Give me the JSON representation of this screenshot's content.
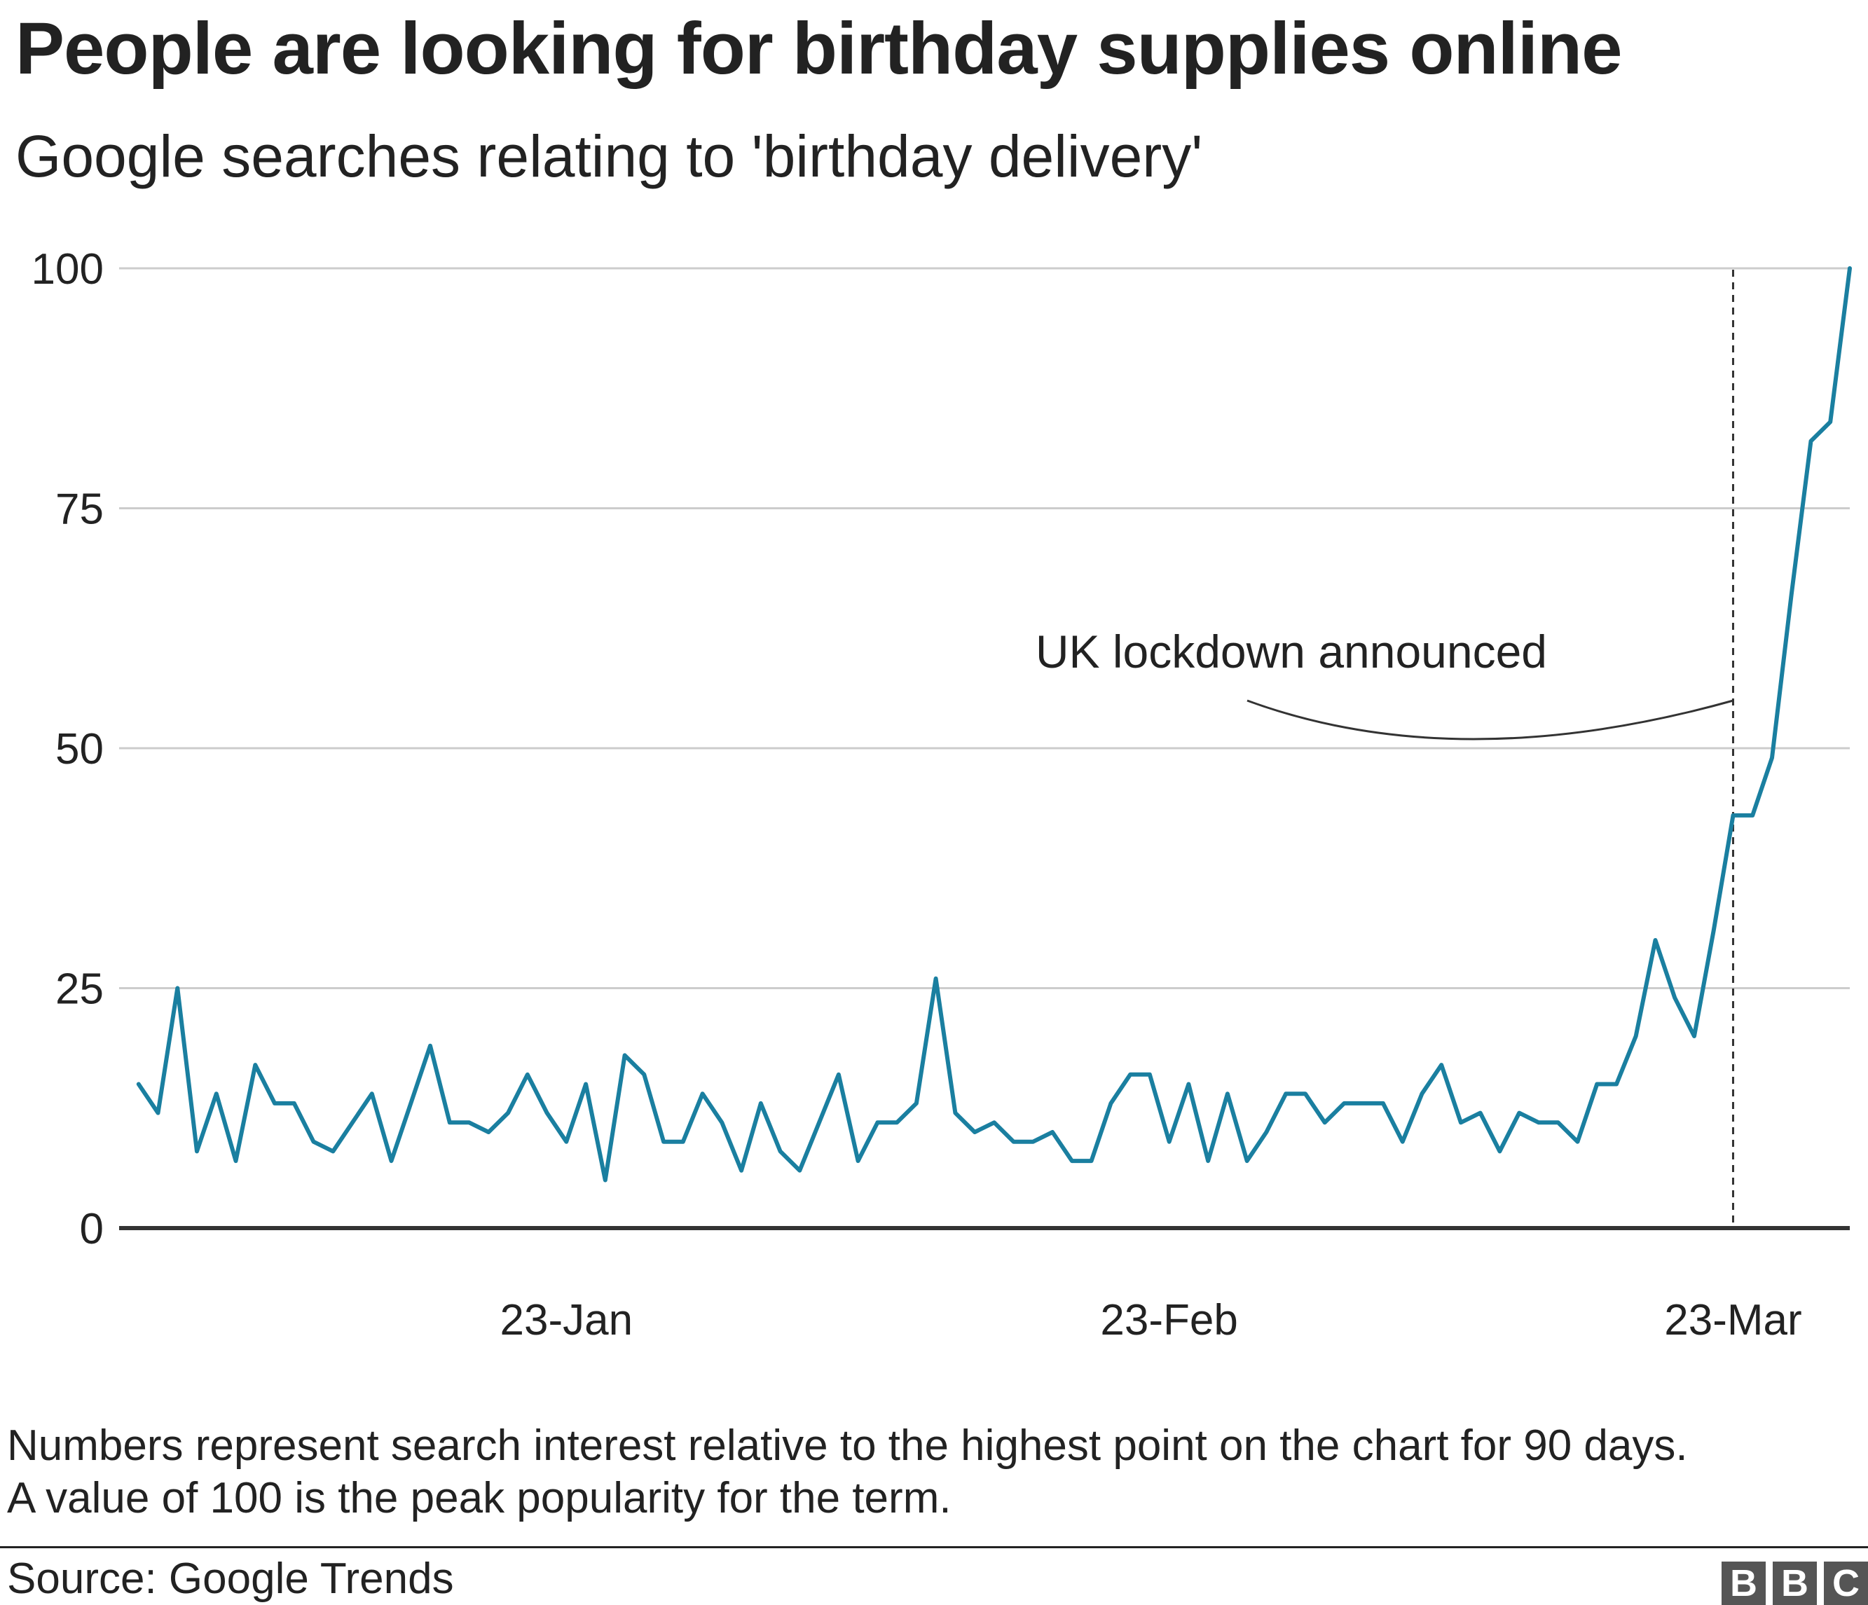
{
  "title": "People are looking for birthday supplies online",
  "subtitle": "Google searches relating to 'birthday delivery'",
  "notes": [
    "Numbers represent search interest relative to the highest point on the chart for 90 days.",
    "A value of 100 is the peak popularity for the term."
  ],
  "source": "Source: Google Trends",
  "logo": [
    "B",
    "B",
    "C"
  ],
  "colors": {
    "line": "#1a7fa0",
    "grid": "#cccccc",
    "axis": "#333333",
    "text": "#222222"
  },
  "chart_data": {
    "type": "line",
    "title": "People are looking for birthday supplies online",
    "subtitle": "Google searches relating to 'birthday delivery'",
    "xlabel": "",
    "ylabel": "",
    "ylim": [
      0,
      100
    ],
    "xlim": [
      "2019-12-31",
      "2020-03-29"
    ],
    "yticks": [
      0,
      25,
      50,
      75,
      100
    ],
    "xtick_labels": [
      {
        "label": "23-Jan",
        "date": "2020-01-23"
      },
      {
        "label": "23-Feb",
        "date": "2020-02-23"
      },
      {
        "label": "23-Mar",
        "date": "2020-03-23"
      }
    ],
    "grid": true,
    "legend": "none",
    "x_start": "2020-01-01",
    "series": [
      {
        "values": [
          15,
          12,
          25,
          8,
          14,
          7,
          17,
          13,
          13,
          9,
          8,
          11,
          14,
          7,
          13,
          19,
          11,
          11,
          10,
          12,
          16,
          12,
          9,
          15,
          5,
          18,
          16,
          9,
          9,
          14,
          11,
          6,
          13,
          8,
          6,
          11,
          16,
          7,
          11,
          11,
          13,
          26,
          12,
          10,
          11,
          9,
          9,
          10,
          7,
          7,
          13,
          16,
          16,
          9,
          15,
          7,
          14,
          7,
          10,
          14,
          14,
          11,
          13,
          13,
          13,
          9,
          14,
          17,
          11,
          12,
          8,
          12,
          11,
          11,
          9,
          15,
          15,
          20,
          30,
          24,
          20,
          31,
          43,
          43,
          49,
          66,
          82,
          84,
          100
        ]
      }
    ],
    "annotations": [
      {
        "text": "UK lockdown announced",
        "date": "2020-03-23",
        "style": "dashed vertical line"
      }
    ]
  }
}
